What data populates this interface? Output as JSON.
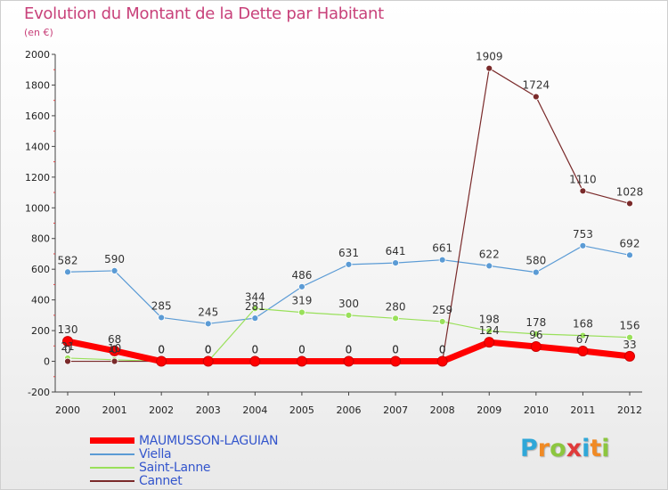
{
  "title": "Evolution du Montant de la Dette par Habitant",
  "subtitle": "(en €)",
  "chart_data": {
    "type": "line",
    "title": "Evolution du Montant de la Dette par Habitant",
    "subtitle": "(en €)",
    "x": [
      "2000",
      "2001",
      "2002",
      "2003",
      "2004",
      "2005",
      "2006",
      "2007",
      "2008",
      "2009",
      "2010",
      "2011",
      "2012"
    ],
    "yticks": [
      -200,
      0,
      200,
      400,
      600,
      800,
      1000,
      1200,
      1400,
      1600,
      1800,
      2000
    ],
    "ylim": [
      -200,
      2000
    ],
    "grid": false,
    "legend_position": "bottom-left",
    "series": [
      {
        "name": "MAUMUSSON-LAGUIAN",
        "color": "#ff0000",
        "values": [
          130,
          68,
          0,
          0,
          0,
          0,
          0,
          0,
          0,
          124,
          96,
          67,
          33
        ],
        "labels": [
          "130",
          "68",
          "0",
          "0",
          "0",
          "0",
          "0",
          "0",
          "0",
          "124",
          "96",
          "67",
          "33"
        ]
      },
      {
        "name": "Viella",
        "color": "#5b9bd5",
        "values": [
          582,
          590,
          285,
          245,
          281,
          486,
          631,
          641,
          661,
          622,
          580,
          753,
          692
        ],
        "labels": [
          "582",
          "590",
          "285",
          "245",
          "281",
          "486",
          "631",
          "641",
          "661",
          "622",
          "580",
          "753",
          "692"
        ]
      },
      {
        "name": "Saint-Lanne",
        "color": "#99e05a",
        "values": [
          21,
          10,
          0,
          0,
          344,
          319,
          300,
          280,
          259,
          198,
          178,
          168,
          156
        ],
        "labels": [
          "21",
          "10",
          "0",
          "0",
          "344",
          "319",
          "300",
          "280",
          "259",
          "198",
          "178",
          "168",
          "156"
        ]
      },
      {
        "name": "Cannet",
        "color": "#7a2a2a",
        "values": [
          0,
          0,
          0,
          0,
          0,
          0,
          0,
          0,
          0,
          1909,
          1724,
          1110,
          1028
        ],
        "labels": [
          "0",
          "0",
          "0",
          "0",
          "0",
          "0",
          "0",
          "0",
          "0",
          "1909",
          "1724",
          "1110",
          "1028"
        ]
      }
    ]
  },
  "logo": {
    "letters": [
      "P",
      "r",
      "o",
      "x",
      "i",
      "t",
      "i"
    ],
    "colors": [
      "#2fa7d8",
      "#f08a24",
      "#8cc63f",
      "#e03a3a",
      "#2fa7d8",
      "#f08a24",
      "#8cc63f"
    ]
  }
}
